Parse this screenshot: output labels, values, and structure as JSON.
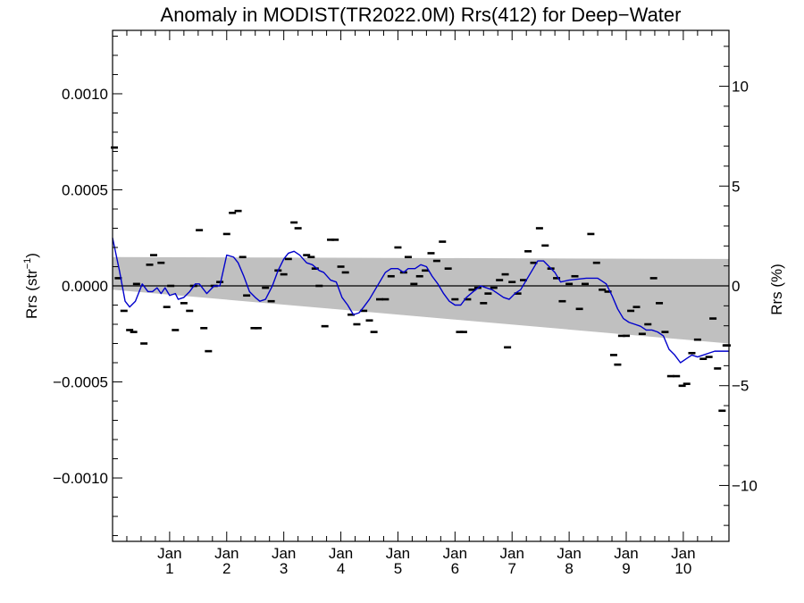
{
  "chart_data": {
    "type": "scatter",
    "title": "Anomaly in MODIST(TR2022.0M) Rrs(412) for Deep−Water",
    "ylabel": "Rrs (str",
    "ylabel_sup": "−1",
    "ylabel_close": ")",
    "ylabel_right": "Rrs (%)",
    "xlim": [
      0,
      10.8
    ],
    "ylim": [
      -0.00133,
      0.00133
    ],
    "ylim_right": [
      -12.8,
      12.8
    ],
    "grid": false,
    "x_ticks": [
      {
        "x": 1.0,
        "month": "Jan",
        "year": "1"
      },
      {
        "x": 2.0,
        "month": "Jan",
        "year": "2"
      },
      {
        "x": 3.0,
        "month": "Jan",
        "year": "3"
      },
      {
        "x": 4.0,
        "month": "Jan",
        "year": "4"
      },
      {
        "x": 5.0,
        "month": "Jan",
        "year": "5"
      },
      {
        "x": 6.0,
        "month": "Jan",
        "year": "6"
      },
      {
        "x": 7.0,
        "month": "Jan",
        "year": "7"
      },
      {
        "x": 8.0,
        "month": "Jan",
        "year": "8"
      },
      {
        "x": 9.0,
        "month": "Jan",
        "year": "9"
      },
      {
        "x": 10.0,
        "month": "Jan",
        "year": "10"
      }
    ],
    "y_ticks_left": [
      {
        "v": 0.001,
        "label": "0.0010"
      },
      {
        "v": 0.0005,
        "label": "0.0005"
      },
      {
        "v": 0.0,
        "label": "0.0000"
      },
      {
        "v": -0.0005,
        "label": "−0.0005"
      },
      {
        "v": -0.001,
        "label": "−0.0010"
      }
    ],
    "y_ticks_right": [
      {
        "v": 10,
        "label": "10"
      },
      {
        "v": 5,
        "label": "5"
      },
      {
        "v": 0,
        "label": "0"
      },
      {
        "v": -5,
        "label": "−5"
      },
      {
        "v": -10,
        "label": "−10"
      }
    ],
    "zero_line": 0.0,
    "band": {
      "upper": [
        [
          0.0,
          0.00015
        ],
        [
          10.8,
          0.00014
        ]
      ],
      "lower": [
        [
          0.0,
          -2e-05
        ],
        [
          10.8,
          -0.0003
        ]
      ],
      "color": "#c0c0c0"
    },
    "series": [
      {
        "marker": "dash",
        "color": "#000000",
        "points": [
          [
            0.0,
            0.00072
          ],
          [
            0.1,
            4e-05
          ],
          [
            0.2,
            -0.00013
          ],
          [
            0.3,
            -0.00023
          ],
          [
            0.37,
            -0.00024
          ],
          [
            0.42,
            1e-05
          ],
          [
            0.55,
            -0.0003
          ],
          [
            0.65,
            0.00011
          ],
          [
            0.72,
            0.00016
          ],
          [
            0.85,
            0.00012
          ],
          [
            0.95,
            -0.00011
          ],
          [
            1.02,
            0.0
          ],
          [
            1.1,
            -0.00023
          ],
          [
            1.25,
            -9e-05
          ],
          [
            1.35,
            -0.00013
          ],
          [
            1.42,
            0.0
          ],
          [
            1.52,
            0.00029
          ],
          [
            1.6,
            -0.00022
          ],
          [
            1.68,
            -0.00034
          ],
          [
            1.78,
            0.0
          ],
          [
            1.88,
            2e-05
          ],
          [
            2.0,
            0.00027
          ],
          [
            2.1,
            0.00038
          ],
          [
            2.2,
            0.00039
          ],
          [
            2.28,
            0.00015
          ],
          [
            2.35,
            -5e-05
          ],
          [
            2.48,
            -0.00022
          ],
          [
            2.55,
            -0.00022
          ],
          [
            2.68,
            -1e-05
          ],
          [
            2.78,
            -8e-05
          ],
          [
            2.9,
            8e-05
          ],
          [
            3.0,
            6e-05
          ],
          [
            3.08,
            0.00014
          ],
          [
            3.18,
            0.00033
          ],
          [
            3.25,
            0.0003
          ],
          [
            3.4,
            0.00016
          ],
          [
            3.48,
            0.00015
          ],
          [
            3.55,
            9e-05
          ],
          [
            3.62,
            0.0
          ],
          [
            3.72,
            -0.00021
          ],
          [
            3.82,
            0.00024
          ],
          [
            3.9,
            0.00024
          ],
          [
            4.0,
            0.0001
          ],
          [
            4.08,
            7e-05
          ],
          [
            4.18,
            -0.00015
          ],
          [
            4.28,
            -0.0002
          ],
          [
            4.4,
            -0.00013
          ],
          [
            4.5,
            -0.00018
          ],
          [
            4.58,
            -0.00024
          ],
          [
            4.68,
            -7e-05
          ],
          [
            4.78,
            -7e-05
          ],
          [
            4.88,
            5e-05
          ],
          [
            5.0,
            0.0002
          ],
          [
            5.1,
            7e-05
          ],
          [
            5.18,
            0.00015
          ],
          [
            5.28,
            1e-05
          ],
          [
            5.38,
            5e-05
          ],
          [
            5.48,
            8e-05
          ],
          [
            5.58,
            0.00017
          ],
          [
            5.68,
            0.00013
          ],
          [
            5.78,
            0.00023
          ],
          [
            5.88,
            9e-05
          ],
          [
            6.0,
            -7e-05
          ],
          [
            6.08,
            -0.00024
          ],
          [
            6.15,
            -0.00024
          ],
          [
            6.22,
            -7e-05
          ],
          [
            6.3,
            -2e-05
          ],
          [
            6.4,
            -1e-05
          ],
          [
            6.5,
            -9e-05
          ],
          [
            6.58,
            -4e-05
          ],
          [
            6.68,
            -1e-05
          ],
          [
            6.78,
            3e-05
          ],
          [
            6.88,
            6e-05
          ],
          [
            6.92,
            -0.00032
          ],
          [
            7.0,
            2e-05
          ],
          [
            7.1,
            -4e-05
          ],
          [
            7.2,
            3e-05
          ],
          [
            7.28,
            0.00018
          ],
          [
            7.38,
            0.00012
          ],
          [
            7.48,
            0.0003
          ],
          [
            7.58,
            0.00021
          ],
          [
            7.68,
            9e-05
          ],
          [
            7.78,
            4e-05
          ],
          [
            7.88,
            -8e-05
          ],
          [
            8.0,
            1e-05
          ],
          [
            8.1,
            5e-05
          ],
          [
            8.18,
            -0.00012
          ],
          [
            8.28,
            1e-05
          ],
          [
            8.38,
            0.00027
          ],
          [
            8.48,
            0.00012
          ],
          [
            8.58,
            -2e-05
          ],
          [
            8.68,
            -3e-05
          ],
          [
            8.78,
            -0.00036
          ],
          [
            8.85,
            -0.00041
          ],
          [
            8.92,
            -0.00026
          ],
          [
            9.0,
            -0.00026
          ],
          [
            9.08,
            -0.00013
          ],
          [
            9.18,
            -0.00011
          ],
          [
            9.28,
            -0.00025
          ],
          [
            9.38,
            -0.0002
          ],
          [
            9.48,
            4e-05
          ],
          [
            9.58,
            -9e-05
          ],
          [
            9.68,
            -0.00024
          ],
          [
            9.78,
            -0.00047
          ],
          [
            9.88,
            -0.00047
          ],
          [
            9.98,
            -0.00052
          ],
          [
            10.06,
            -0.00051
          ],
          [
            10.15,
            -0.00035
          ],
          [
            10.25,
            -0.00028
          ],
          [
            10.35,
            -0.00038
          ],
          [
            10.45,
            -0.00037
          ],
          [
            10.52,
            -0.00017
          ],
          [
            10.6,
            -0.00043
          ],
          [
            10.68,
            -0.00065
          ],
          [
            10.75,
            -0.00031
          ],
          [
            10.8,
            -0.00031
          ]
        ]
      },
      {
        "marker": "line",
        "color": "#0000cc",
        "points": [
          [
            0.0,
            0.00025
          ],
          [
            0.12,
            8e-05
          ],
          [
            0.22,
            -8e-05
          ],
          [
            0.3,
            -0.00011
          ],
          [
            0.4,
            -8e-05
          ],
          [
            0.52,
            1e-05
          ],
          [
            0.62,
            -3e-05
          ],
          [
            0.7,
            -3e-05
          ],
          [
            0.78,
            -1e-05
          ],
          [
            0.85,
            -4e-05
          ],
          [
            0.92,
            -1e-05
          ],
          [
            1.0,
            -5e-05
          ],
          [
            1.1,
            -4e-05
          ],
          [
            1.15,
            -7e-05
          ],
          [
            1.25,
            -6e-05
          ],
          [
            1.35,
            -3e-05
          ],
          [
            1.45,
            1e-05
          ],
          [
            1.52,
            1e-05
          ],
          [
            1.65,
            -4e-05
          ],
          [
            1.78,
            0.0
          ],
          [
            1.88,
            0.0
          ],
          [
            2.0,
            0.00016
          ],
          [
            2.12,
            0.00015
          ],
          [
            2.2,
            0.00012
          ],
          [
            2.3,
            5e-05
          ],
          [
            2.4,
            -3e-05
          ],
          [
            2.5,
            -6e-05
          ],
          [
            2.58,
            -8e-05
          ],
          [
            2.68,
            -7e-05
          ],
          [
            2.8,
            0.0
          ],
          [
            2.9,
            8e-05
          ],
          [
            3.0,
            0.00014
          ],
          [
            3.08,
            0.00017
          ],
          [
            3.18,
            0.00018
          ],
          [
            3.28,
            0.00016
          ],
          [
            3.4,
            0.00012
          ],
          [
            3.5,
            0.00011
          ],
          [
            3.62,
            8e-05
          ],
          [
            3.7,
            7e-05
          ],
          [
            3.82,
            3e-05
          ],
          [
            3.92,
            2e-05
          ],
          [
            4.02,
            -6e-05
          ],
          [
            4.12,
            -0.0001
          ],
          [
            4.22,
            -0.00015
          ],
          [
            4.32,
            -0.00014
          ],
          [
            4.4,
            -0.00011
          ],
          [
            4.5,
            -7e-05
          ],
          [
            4.58,
            -3e-05
          ],
          [
            4.68,
            2e-05
          ],
          [
            4.78,
            7e-05
          ],
          [
            4.88,
            9e-05
          ],
          [
            5.0,
            9e-05
          ],
          [
            5.1,
            7e-05
          ],
          [
            5.18,
            9e-05
          ],
          [
            5.3,
            9e-05
          ],
          [
            5.4,
            0.00011
          ],
          [
            5.5,
            0.0001
          ],
          [
            5.6,
            5e-05
          ],
          [
            5.7,
            1e-05
          ],
          [
            5.8,
            -4e-05
          ],
          [
            5.9,
            -8e-05
          ],
          [
            6.0,
            -0.0001
          ],
          [
            6.1,
            -0.0001
          ],
          [
            6.2,
            -6e-05
          ],
          [
            6.32,
            -3e-05
          ],
          [
            6.45,
            0.0
          ],
          [
            6.55,
            -1e-05
          ],
          [
            6.65,
            -2e-05
          ],
          [
            6.75,
            -4e-05
          ],
          [
            6.85,
            -6e-05
          ],
          [
            6.95,
            -7e-05
          ],
          [
            7.05,
            -4e-05
          ],
          [
            7.15,
            -2e-05
          ],
          [
            7.25,
            3e-05
          ],
          [
            7.35,
            8e-05
          ],
          [
            7.45,
            0.00013
          ],
          [
            7.55,
            0.00013
          ],
          [
            7.65,
            0.0001
          ],
          [
            7.75,
            7e-05
          ],
          [
            7.85,
            2e-05
          ],
          [
            8.0,
            3e-05
          ],
          [
            8.3,
            4e-05
          ],
          [
            8.5,
            4e-05
          ],
          [
            8.65,
            1e-05
          ],
          [
            8.75,
            -5e-05
          ],
          [
            8.85,
            -0.00012
          ],
          [
            8.95,
            -0.00017
          ],
          [
            9.05,
            -0.00019
          ],
          [
            9.15,
            -0.0002
          ],
          [
            9.25,
            -0.00021
          ],
          [
            9.35,
            -0.00023
          ],
          [
            9.45,
            -0.00023
          ],
          [
            9.55,
            -0.00024
          ],
          [
            9.65,
            -0.00026
          ],
          [
            9.75,
            -0.00033
          ],
          [
            9.85,
            -0.00036
          ],
          [
            9.95,
            -0.0004
          ],
          [
            10.05,
            -0.00038
          ],
          [
            10.15,
            -0.00036
          ],
          [
            10.25,
            -0.00037
          ],
          [
            10.35,
            -0.00036
          ],
          [
            10.45,
            -0.00035
          ],
          [
            10.55,
            -0.00034
          ],
          [
            10.65,
            -0.00034
          ],
          [
            10.8,
            -0.00034
          ]
        ]
      }
    ]
  }
}
